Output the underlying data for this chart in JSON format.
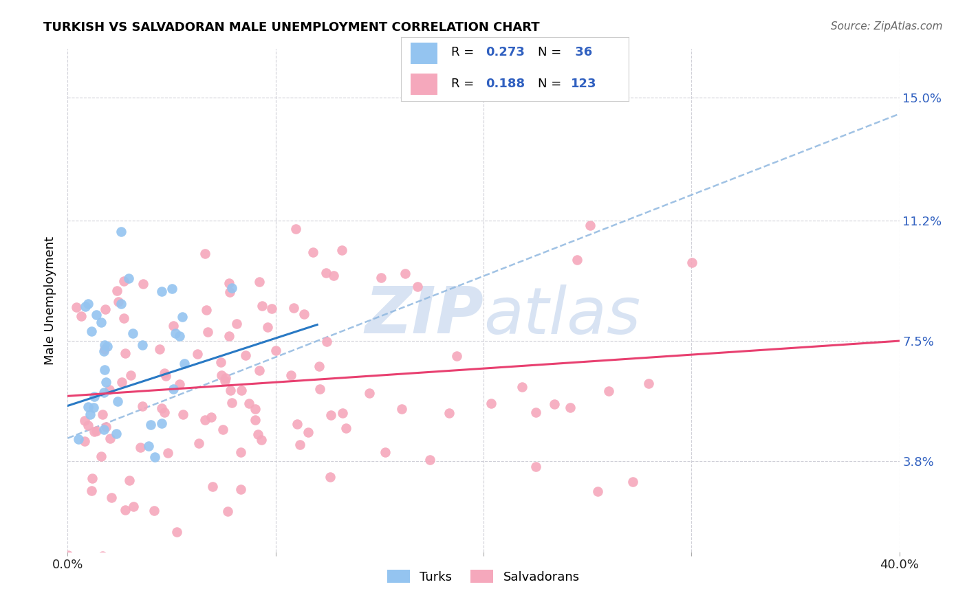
{
  "title": "TURKISH VS SALVADORAN MALE UNEMPLOYMENT CORRELATION CHART",
  "source": "Source: ZipAtlas.com",
  "ylabel": "Male Unemployment",
  "yticks": [
    3.8,
    7.5,
    11.2,
    15.0
  ],
  "xlim": [
    0.0,
    0.4
  ],
  "ylim": [
    0.01,
    0.165
  ],
  "turk_color": "#94c4f0",
  "salv_color": "#f5a8bc",
  "turk_line_color": "#2979c4",
  "salv_line_color": "#e84070",
  "dashed_line_color": "#90b8e0",
  "watermark_color": "#c8d8ee",
  "grid_color": "#d0d0d8",
  "note_color": "#3060c0",
  "turk_seed": 42,
  "salv_seed": 77,
  "n_turks": 36,
  "n_salv": 123
}
